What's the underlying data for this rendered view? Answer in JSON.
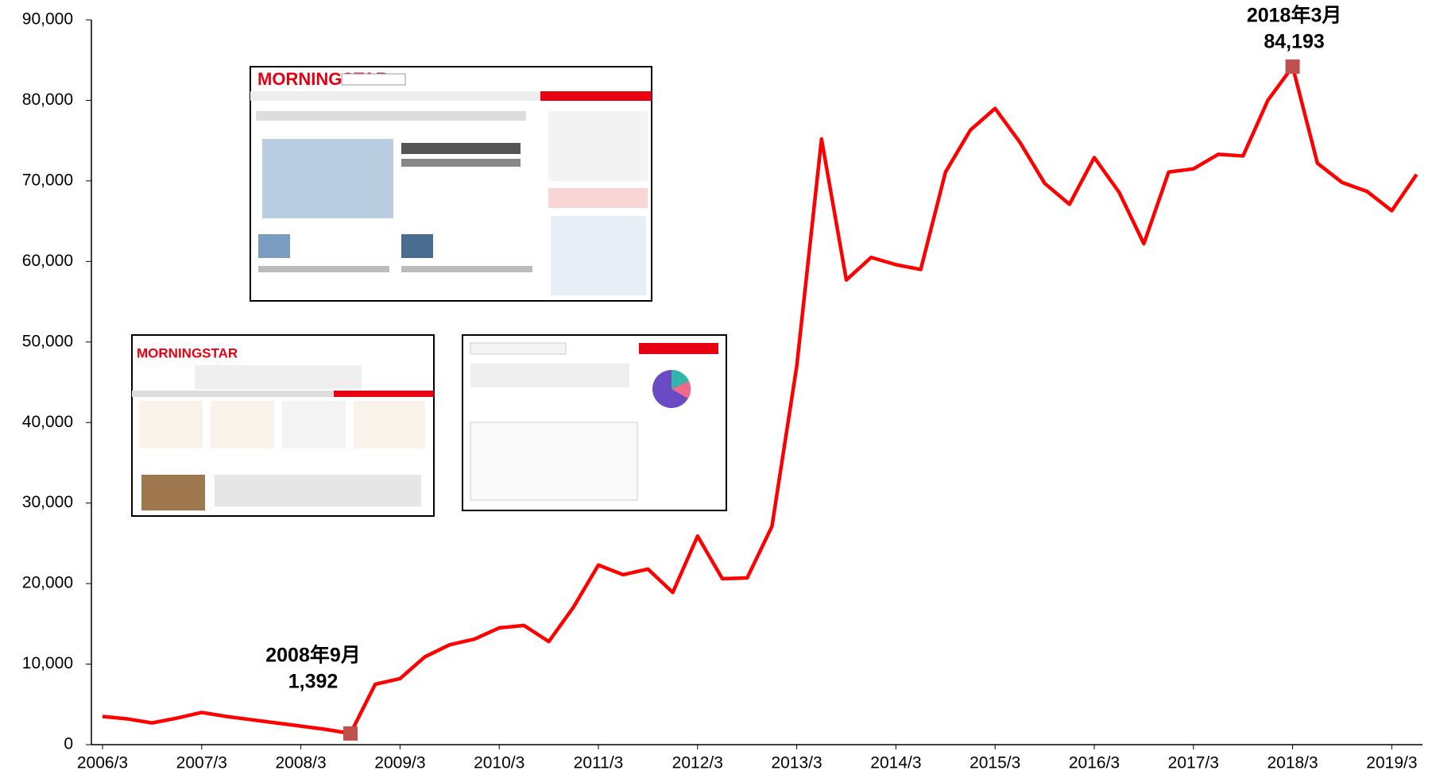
{
  "chart_data": {
    "type": "line",
    "categories": [
      "2006/3",
      null,
      null,
      null,
      "2007/3",
      null,
      null,
      null,
      "2008/3",
      null,
      null,
      null,
      "2009/3",
      null,
      null,
      null,
      "2010/3",
      null,
      null,
      null,
      "2011/3",
      null,
      null,
      null,
      "2012/3",
      null,
      null,
      null,
      "2013/3",
      null,
      null,
      null,
      "2014/3",
      null,
      null,
      null,
      "2015/3",
      null,
      null,
      null,
      "2016/3",
      null,
      null,
      null,
      "2017/3",
      null,
      null,
      null,
      "2018/3",
      null,
      null,
      null,
      "2019/3",
      null
    ],
    "series": [
      {
        "color": "#ff0000",
        "values": [
          3500,
          3200,
          2700,
          3300,
          4000,
          3500,
          3100,
          2700,
          2300,
          1900,
          1392,
          7500,
          8200,
          10900,
          12400,
          13100,
          14500,
          14800,
          12800,
          17100,
          22300,
          21100,
          21800,
          18900,
          25900,
          20600,
          20700,
          27100,
          47000,
          75200,
          57700,
          60500,
          59600,
          59000,
          71100,
          76300,
          79000,
          74800,
          69700,
          67100,
          72900,
          68600,
          62200,
          71100,
          71500,
          73300,
          73100,
          80000,
          84193,
          72200,
          69800,
          68700,
          66300,
          70800
        ],
        "value_labels": [
          null,
          null,
          null,
          null,
          null,
          null,
          null,
          null,
          null,
          null,
          "1,392",
          null,
          null,
          null,
          null,
          null,
          null,
          null,
          null,
          null,
          null,
          null,
          null,
          null,
          null,
          null,
          null,
          null,
          null,
          null,
          null,
          null,
          null,
          null,
          null,
          null,
          null,
          null,
          null,
          null,
          null,
          null,
          null,
          null,
          null,
          null,
          null,
          null,
          "84,193",
          null,
          null,
          null,
          null,
          null
        ],
        "point_labels": [
          null,
          null,
          null,
          null,
          null,
          null,
          null,
          null,
          null,
          null,
          "2008年9月",
          null,
          null,
          null,
          null,
          null,
          null,
          null,
          null,
          null,
          null,
          null,
          null,
          null,
          null,
          null,
          null,
          null,
          null,
          null,
          null,
          null,
          null,
          null,
          null,
          null,
          null,
          null,
          null,
          null,
          null,
          null,
          null,
          null,
          null,
          null,
          null,
          null,
          "2018年3月",
          null,
          null,
          null,
          null,
          null
        ],
        "marker_color": "#c0504d"
      }
    ],
    "ylim": [
      0,
      90000
    ],
    "yticks": [
      0,
      {
        "value": 10000,
        "label": "10,000"
      },
      {
        "value": 20000,
        "label": "20,000"
      },
      {
        "value": 30000,
        "label": "30,000"
      },
      {
        "value": 40000,
        "label": "40,000"
      },
      {
        "value": 50000,
        "label": "50,000"
      },
      {
        "value": 60000,
        "label": "60,000"
      },
      {
        "value": 70000,
        "label": "70,000"
      },
      {
        "value": 80000,
        "label": "80,000"
      },
      {
        "value": 90000,
        "label": "90,000"
      }
    ],
    "grid": false
  },
  "insets": [
    {
      "logo": "MORNINGSTAR"
    },
    {
      "logo": "MORNINGSTAR"
    }
  ]
}
